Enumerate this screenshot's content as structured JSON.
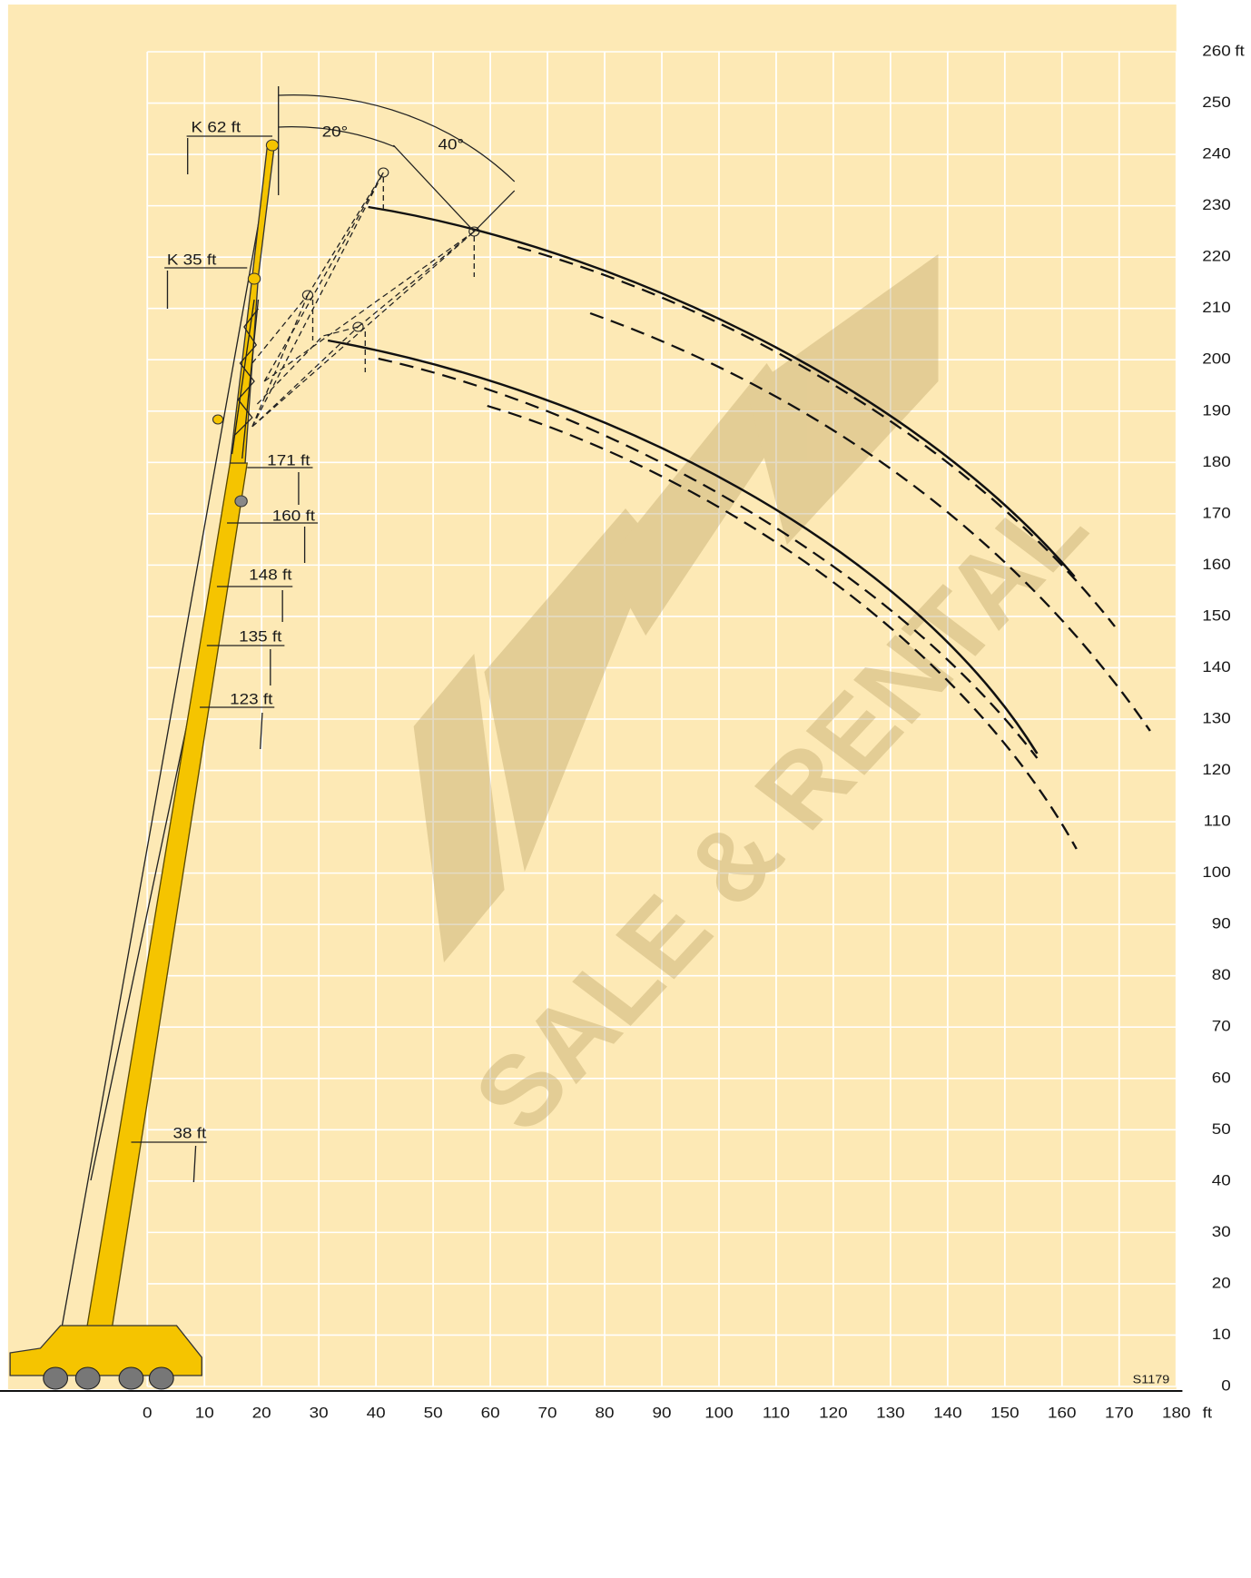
{
  "chart_data": {
    "type": "range",
    "xlim": [
      0,
      180
    ],
    "xticks": [
      0,
      10,
      20,
      30,
      40,
      50,
      60,
      70,
      80,
      90,
      100,
      110,
      120,
      130,
      140,
      150,
      160,
      170,
      180
    ],
    "ylim": [
      0,
      260
    ],
    "yticks": [
      0,
      10,
      20,
      30,
      40,
      50,
      60,
      70,
      80,
      90,
      100,
      110,
      120,
      130,
      140,
      150,
      160,
      170,
      180,
      190,
      200,
      210,
      220,
      230,
      240,
      250,
      260
    ],
    "x_unit": "ft",
    "y_unit": "ft",
    "grid": true,
    "annotations": [
      "K 62 ft",
      "K 35 ft",
      "20°",
      "40°",
      "171 ft",
      "160 ft",
      "148 ft",
      "135 ft",
      "123 ft",
      "38 ft"
    ],
    "watermark": "SALE & RENTAL",
    "code": "S1179"
  }
}
